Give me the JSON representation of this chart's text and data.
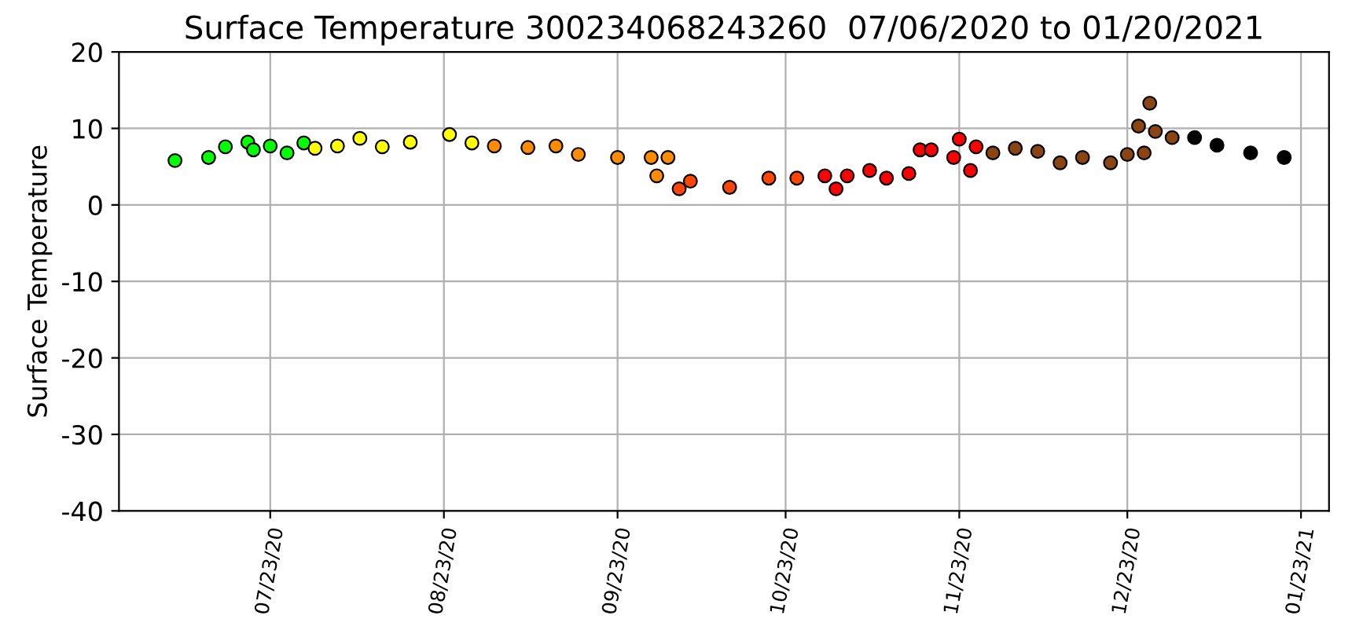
{
  "chart_data": {
    "type": "scatter",
    "title": "Surface Temperature 300234068243260  07/06/2020 to 01/20/2021",
    "ylabel": "Surface Temperature",
    "x": [
      "2020-07-06",
      "2020-07-12",
      "2020-07-15",
      "2020-07-19",
      "2020-07-20",
      "2020-07-23",
      "2020-07-26",
      "2020-07-29",
      "2020-07-31",
      "2020-08-04",
      "2020-08-08",
      "2020-08-12",
      "2020-08-17",
      "2020-08-24",
      "2020-08-28",
      "2020-09-01",
      "2020-09-07",
      "2020-09-12",
      "2020-09-16",
      "2020-09-23",
      "2020-09-29",
      "2020-09-30",
      "2020-10-02",
      "2020-10-04",
      "2020-10-06",
      "2020-10-13",
      "2020-10-20",
      "2020-10-25",
      "2020-10-30",
      "2020-11-01",
      "2020-11-03",
      "2020-11-07",
      "2020-11-10",
      "2020-11-14",
      "2020-11-16",
      "2020-11-18",
      "2020-11-22",
      "2020-11-23",
      "2020-11-25",
      "2020-11-26",
      "2020-11-29",
      "2020-12-03",
      "2020-12-07",
      "2020-12-11",
      "2020-12-15",
      "2020-12-20",
      "2020-12-23",
      "2020-12-25",
      "2020-12-26",
      "2020-12-27",
      "2020-12-28",
      "2020-12-31",
      "2021-01-04",
      "2021-01-08",
      "2021-01-14",
      "2021-01-20"
    ],
    "values": [
      5.8,
      6.2,
      7.6,
      8.2,
      7.2,
      7.7,
      6.8,
      8.1,
      7.4,
      7.7,
      8.7,
      7.6,
      8.2,
      9.2,
      8.1,
      7.7,
      7.5,
      7.7,
      6.6,
      6.2,
      6.2,
      3.8,
      6.2,
      2.1,
      3.1,
      2.3,
      3.5,
      3.5,
      3.8,
      2.1,
      3.8,
      4.5,
      3.5,
      4.1,
      7.2,
      7.2,
      6.2,
      8.6,
      4.5,
      7.6,
      6.8,
      7.4,
      7.0,
      5.5,
      6.2,
      5.5,
      6.6,
      10.3,
      6.8,
      13.3,
      9.6,
      8.8,
      8.8,
      7.8,
      6.8,
      6.2
    ],
    "colors": [
      "#00ff00",
      "#00ff00",
      "#00ff00",
      "#00ff00",
      "#00ff00",
      "#00ff00",
      "#00ff00",
      "#00ff00",
      "#ffff00",
      "#ffff00",
      "#ffff00",
      "#ffff00",
      "#ffff00",
      "#ffff00",
      "#ffff00",
      "#ff8c00",
      "#ff8c00",
      "#ff8c00",
      "#ff8c00",
      "#ff8c00",
      "#ff8c00",
      "#ff8c00",
      "#ff8c00",
      "#ff4500",
      "#ff4500",
      "#ff4500",
      "#ff4500",
      "#ff4500",
      "#ff0000",
      "#ff0000",
      "#ff0000",
      "#ff0000",
      "#ff0000",
      "#ff0000",
      "#ff0000",
      "#ff0000",
      "#ff0000",
      "#ff0000",
      "#ff0000",
      "#ff0000",
      "#8b4513",
      "#8b4513",
      "#8b4513",
      "#8b4513",
      "#8b4513",
      "#8b4513",
      "#8b4513",
      "#8b4513",
      "#8b4513",
      "#8b4513",
      "#8b4513",
      "#8b4513",
      "#000000",
      "#000000",
      "#000000",
      "#000000"
    ],
    "xlim": [
      "2020-06-26",
      "2021-01-28"
    ],
    "xticks": [
      {
        "value": "2020-07-23",
        "label": "07/23/20"
      },
      {
        "value": "2020-08-23",
        "label": "08/23/20"
      },
      {
        "value": "2020-09-23",
        "label": "09/23/20"
      },
      {
        "value": "2020-10-23",
        "label": "10/23/20"
      },
      {
        "value": "2020-11-23",
        "label": "11/23/20"
      },
      {
        "value": "2020-12-23",
        "label": "12/23/20"
      },
      {
        "value": "2021-01-23",
        "label": "01/23/21"
      }
    ],
    "ylim": [
      -40,
      20
    ],
    "yticks": [
      -40,
      -30,
      -20,
      -10,
      0,
      10,
      20
    ],
    "grid": true,
    "marker": "circle"
  }
}
